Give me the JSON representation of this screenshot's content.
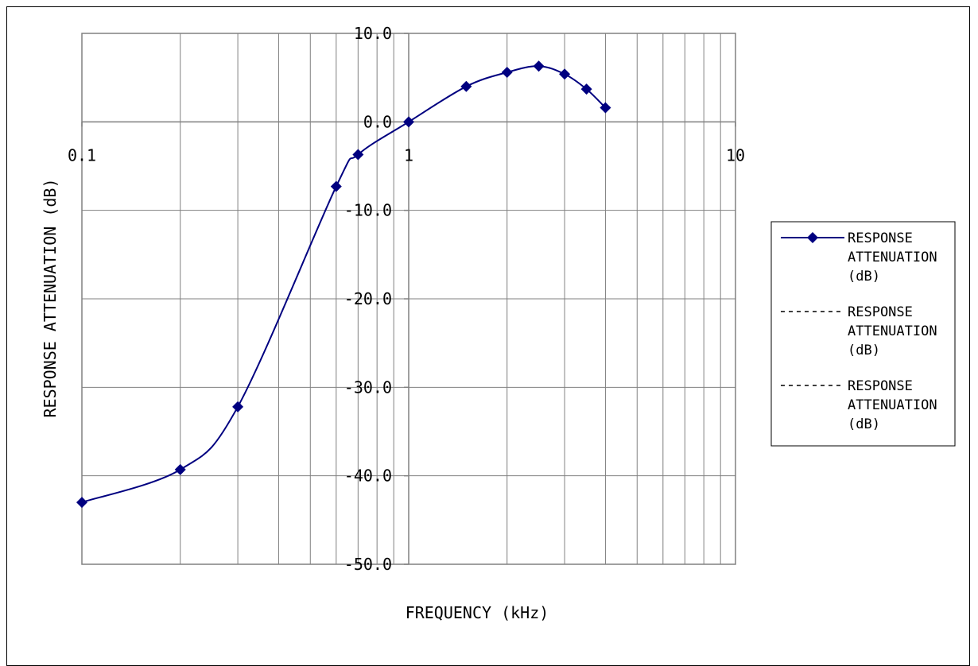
{
  "chart_data": {
    "type": "line",
    "xlabel": "FREQUENCY (kHz)",
    "ylabel": "RESPONSE ATTENUATION (dB)",
    "xscale": "log",
    "xlim": [
      0.1,
      10
    ],
    "ylim": [
      -50,
      10
    ],
    "y_ticks": [
      "10.0",
      "0.0",
      "-10.0",
      "-20.0",
      "-30.0",
      "-40.0",
      "-50.0"
    ],
    "x_tick_labels": [
      {
        "value": 0.1,
        "label": "0.1"
      },
      {
        "value": 1,
        "label": "1"
      },
      {
        "value": 10,
        "label": "10"
      }
    ],
    "grid": true,
    "legend_position": "right",
    "series": [
      {
        "name": "RESPONSE ATTENUATION (dB)",
        "color": "#000080",
        "marker": "diamond",
        "x": [
          0.1,
          0.2,
          0.3,
          0.6,
          0.7,
          1.0,
          1.5,
          2.0,
          2.5,
          3.0,
          3.5,
          4.0
        ],
        "y": [
          -43.0,
          -39.3,
          -32.2,
          -7.3,
          -3.7,
          0.0,
          4.0,
          5.6,
          6.3,
          5.4,
          3.7,
          1.6
        ]
      },
      {
        "name": "RESPONSE ATTENUATION (dB)",
        "color": "#000000",
        "marker": "none",
        "dash": "dashed",
        "x": [],
        "y": []
      },
      {
        "name": "RESPONSE ATTENUATION (dB)",
        "color": "#000000",
        "marker": "none",
        "dash": "dashed",
        "x": [],
        "y": []
      }
    ],
    "legend": [
      {
        "lines": [
          "RESPONSE",
          "ATTENUATION",
          "(dB)"
        ]
      },
      {
        "lines": [
          "RESPONSE",
          "ATTENUATION",
          "(dB)"
        ]
      },
      {
        "lines": [
          "RESPONSE",
          "ATTENUATION",
          "(dB)"
        ]
      }
    ]
  }
}
